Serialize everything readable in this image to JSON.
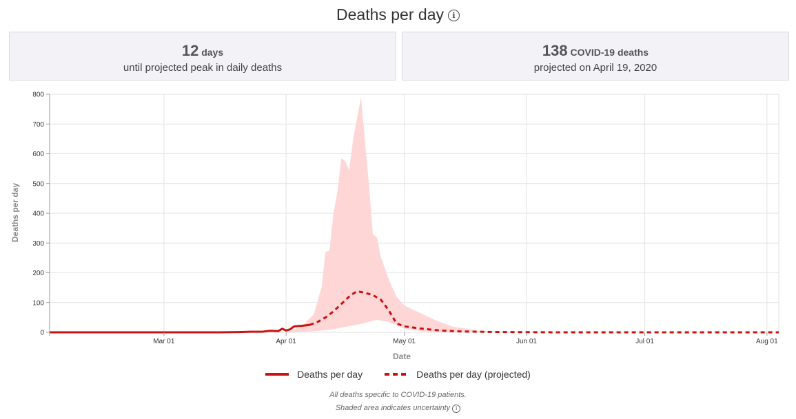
{
  "header": {
    "title": "Deaths per day",
    "info_icon": "info-icon"
  },
  "cards": {
    "peak_days": {
      "value": "12",
      "unit": "days",
      "caption": "until projected peak in daily deaths"
    },
    "peak_deaths": {
      "value": "138",
      "unit": "COVID-19 deaths",
      "caption": "projected on April 19, 2020"
    }
  },
  "legend": {
    "actual": "Deaths per day",
    "projected": "Deaths per day (projected)"
  },
  "footnotes": {
    "line1": "All deaths specific to COVID-19 patients.",
    "line2": "Shaded area indicates uncertainty"
  },
  "colors": {
    "line": "#cc1111",
    "band": "#ffd6d6",
    "grid": "#e2e2e2"
  },
  "chart_data": {
    "type": "line",
    "xlabel": "Date",
    "ylabel": "Deaths per day",
    "xlim": [
      "2020-02-01",
      "2020-08-04"
    ],
    "ylim": [
      0,
      800
    ],
    "yticks": [
      0,
      100,
      200,
      300,
      400,
      500,
      600,
      700,
      800
    ],
    "xticks": [
      {
        "date": "2020-03-01",
        "label": "Mar 01"
      },
      {
        "date": "2020-04-01",
        "label": "Apr 01"
      },
      {
        "date": "2020-05-01",
        "label": "May 01"
      },
      {
        "date": "2020-06-01",
        "label": "Jun 01"
      },
      {
        "date": "2020-07-01",
        "label": "Jul 01"
      },
      {
        "date": "2020-08-01",
        "label": "Aug 01"
      }
    ],
    "grid": true,
    "legend_position": "bottom",
    "series": [
      {
        "name": "Deaths per day",
        "style": "solid",
        "points": [
          [
            "2020-02-01",
            0
          ],
          [
            "2020-03-15",
            0
          ],
          [
            "2020-03-20",
            1
          ],
          [
            "2020-03-23",
            2
          ],
          [
            "2020-03-26",
            2
          ],
          [
            "2020-03-28",
            5
          ],
          [
            "2020-03-30",
            4
          ],
          [
            "2020-03-31",
            12
          ],
          [
            "2020-04-01",
            6
          ],
          [
            "2020-04-02",
            10
          ],
          [
            "2020-04-03",
            20
          ],
          [
            "2020-04-05",
            22
          ],
          [
            "2020-04-07",
            25
          ]
        ]
      },
      {
        "name": "Deaths per day (projected)",
        "style": "dashed",
        "points": [
          [
            "2020-04-07",
            25
          ],
          [
            "2020-04-09",
            35
          ],
          [
            "2020-04-11",
            50
          ],
          [
            "2020-04-13",
            70
          ],
          [
            "2020-04-15",
            95
          ],
          [
            "2020-04-17",
            120
          ],
          [
            "2020-04-18",
            130
          ],
          [
            "2020-04-19",
            138
          ],
          [
            "2020-04-21",
            133
          ],
          [
            "2020-04-23",
            125
          ],
          [
            "2020-04-25",
            110
          ],
          [
            "2020-04-27",
            75
          ],
          [
            "2020-04-29",
            30
          ],
          [
            "2020-05-01",
            20
          ],
          [
            "2020-05-05",
            13
          ],
          [
            "2020-05-10",
            6
          ],
          [
            "2020-05-15",
            3
          ],
          [
            "2020-05-25",
            1
          ],
          [
            "2020-06-10",
            0
          ],
          [
            "2020-08-04",
            0
          ]
        ]
      }
    ],
    "uncertainty_band": {
      "upper": [
        [
          "2020-04-01",
          0
        ],
        [
          "2020-04-05",
          20
        ],
        [
          "2020-04-08",
          60
        ],
        [
          "2020-04-10",
          150
        ],
        [
          "2020-04-11",
          270
        ],
        [
          "2020-04-12",
          275
        ],
        [
          "2020-04-13",
          400
        ],
        [
          "2020-04-14",
          470
        ],
        [
          "2020-04-15",
          585
        ],
        [
          "2020-04-16",
          575
        ],
        [
          "2020-04-17",
          545
        ],
        [
          "2020-04-18",
          650
        ],
        [
          "2020-04-20",
          790
        ],
        [
          "2020-04-22",
          500
        ],
        [
          "2020-04-23",
          330
        ],
        [
          "2020-04-24",
          320
        ],
        [
          "2020-04-25",
          255
        ],
        [
          "2020-04-27",
          180
        ],
        [
          "2020-04-29",
          120
        ],
        [
          "2020-05-01",
          90
        ],
        [
          "2020-05-05",
          65
        ],
        [
          "2020-05-09",
          40
        ],
        [
          "2020-05-13",
          20
        ],
        [
          "2020-05-20",
          5
        ],
        [
          "2020-06-01",
          1
        ],
        [
          "2020-08-04",
          0
        ]
      ],
      "lower": [
        [
          "2020-04-01",
          0
        ],
        [
          "2020-04-07",
          3
        ],
        [
          "2020-04-12",
          8
        ],
        [
          "2020-04-16",
          18
        ],
        [
          "2020-04-20",
          28
        ],
        [
          "2020-04-24",
          42
        ],
        [
          "2020-04-27",
          35
        ],
        [
          "2020-05-01",
          12
        ],
        [
          "2020-05-06",
          3
        ],
        [
          "2020-05-15",
          0
        ],
        [
          "2020-08-04",
          0
        ]
      ]
    }
  }
}
